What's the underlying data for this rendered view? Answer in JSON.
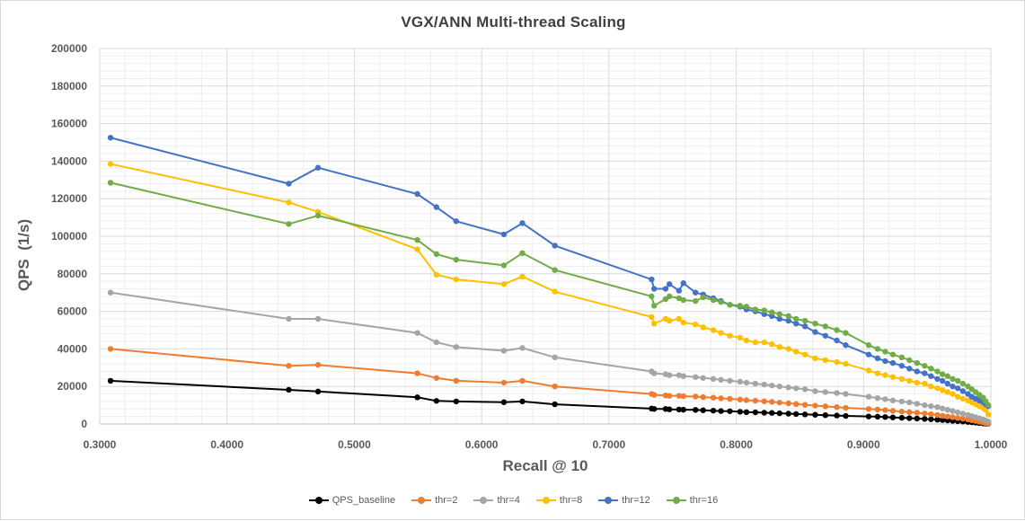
{
  "chart_data": {
    "type": "line",
    "title": "VGX/ANN Multi-thread  Scaling",
    "xlabel": "Recall @ 10",
    "ylabel": "QPS  (1/s)",
    "xlim": [
      0.3,
      1.0
    ],
    "ylim": [
      0,
      200000
    ],
    "x_ticks": [
      "0.3000",
      "0.4000",
      "0.5000",
      "0.6000",
      "0.7000",
      "0.8000",
      "0.9000",
      "1.0000"
    ],
    "y_ticks": [
      "0",
      "20000",
      "40000",
      "60000",
      "80000",
      "100000",
      "120000",
      "140000",
      "160000",
      "180000",
      "200000"
    ],
    "grid": true,
    "legend_position": "bottom",
    "x": [
      0.3085,
      0.4485,
      0.4715,
      0.5495,
      0.5645,
      0.58,
      0.6175,
      0.632,
      0.6575,
      0.7335,
      0.7355,
      0.7445,
      0.7475,
      0.755,
      0.7585,
      0.768,
      0.774,
      0.782,
      0.788,
      0.795,
      0.803,
      0.808,
      0.815,
      0.822,
      0.828,
      0.834,
      0.841,
      0.847,
      0.854,
      0.862,
      0.87,
      0.879,
      0.886,
      0.904,
      0.911,
      0.917,
      0.923,
      0.93,
      0.936,
      0.942,
      0.948,
      0.953,
      0.958,
      0.962,
      0.966,
      0.97,
      0.974,
      0.978,
      0.982,
      0.985,
      0.988,
      0.991,
      0.994,
      0.996,
      0.998
    ],
    "series": [
      {
        "name": "QPS_baseline",
        "color": "#000000",
        "values": [
          23000,
          18200,
          17300,
          14200,
          12300,
          12000,
          11600,
          12000,
          10500,
          8200,
          8000,
          8000,
          7800,
          7700,
          7600,
          7500,
          7300,
          7100,
          6900,
          6800,
          6500,
          6300,
          6200,
          6000,
          5900,
          5700,
          5500,
          5300,
          5100,
          4900,
          4700,
          4500,
          4300,
          4000,
          3900,
          3700,
          3500,
          3300,
          3100,
          2900,
          2700,
          2500,
          2300,
          2100,
          1900,
          1700,
          1500,
          1300,
          1100,
          900,
          700,
          500,
          300,
          200,
          100
        ]
      },
      {
        "name": "thr=2",
        "color": "#ed7d31",
        "values": [
          40000,
          31000,
          31500,
          27000,
          24500,
          23000,
          22000,
          23000,
          20000,
          16000,
          15500,
          15200,
          15000,
          15000,
          14800,
          14600,
          14300,
          14000,
          13700,
          13400,
          13000,
          12700,
          12400,
          12100,
          11800,
          11400,
          11000,
          10600,
          10200,
          9800,
          9400,
          9000,
          8600,
          8000,
          7700,
          7400,
          7000,
          6600,
          6300,
          6000,
          5600,
          5200,
          4800,
          4400,
          4000,
          3600,
          3200,
          2800,
          2400,
          2000,
          1600,
          1200,
          800,
          500,
          200
        ]
      },
      {
        "name": "thr=4",
        "color": "#a5a5a5",
        "values": [
          70000,
          56000,
          56000,
          48500,
          43500,
          41000,
          39000,
          40500,
          35500,
          28000,
          27000,
          26500,
          26000,
          26000,
          25500,
          25000,
          24500,
          24000,
          23500,
          23000,
          22500,
          22000,
          21500,
          21000,
          20500,
          20000,
          19500,
          19000,
          18500,
          17500,
          17000,
          16500,
          16000,
          14500,
          13800,
          13200,
          12500,
          12000,
          11500,
          10800,
          10000,
          9500,
          9000,
          8300,
          7600,
          6900,
          6200,
          5500,
          4800,
          4200,
          3600,
          3000,
          2400,
          1800,
          1200
        ]
      },
      {
        "name": "thr=8",
        "color": "#ffc000",
        "values": [
          138500,
          118000,
          113000,
          93000,
          79500,
          77000,
          74500,
          78500,
          70500,
          57000,
          53500,
          56000,
          55000,
          56000,
          54000,
          53000,
          51500,
          50000,
          48500,
          47000,
          46000,
          44500,
          43500,
          43500,
          42500,
          41000,
          40000,
          38500,
          37000,
          35000,
          34000,
          33000,
          32000,
          28500,
          27000,
          26000,
          25000,
          24000,
          23000,
          22000,
          21500,
          20000,
          19000,
          18000,
          17000,
          16000,
          14500,
          13500,
          12500,
          11500,
          10500,
          9500,
          8500,
          7500,
          5000
        ]
      },
      {
        "name": "thr=12",
        "color": "#4472c4",
        "values": [
          152500,
          128000,
          136500,
          122500,
          115500,
          108000,
          101000,
          107000,
          95000,
          77000,
          72000,
          72000,
          74500,
          71000,
          75000,
          70000,
          69000,
          67000,
          65500,
          63500,
          62500,
          61000,
          60000,
          58500,
          57500,
          56000,
          55000,
          53500,
          52000,
          49000,
          47000,
          44500,
          42000,
          37000,
          35000,
          33500,
          32500,
          31000,
          29500,
          28000,
          27000,
          25500,
          24000,
          23000,
          21500,
          20000,
          19000,
          17500,
          16000,
          14500,
          13500,
          12500,
          11500,
          10500,
          9500
        ]
      },
      {
        "name": "thr=16",
        "color": "#70ad47",
        "values": [
          128500,
          106500,
          111000,
          98000,
          90500,
          87500,
          84500,
          91000,
          82000,
          68000,
          63000,
          66500,
          68000,
          67000,
          66000,
          65500,
          67500,
          66000,
          65000,
          63500,
          63000,
          62500,
          61000,
          60500,
          59500,
          58500,
          57500,
          56000,
          55000,
          53500,
          52000,
          50000,
          48500,
          42000,
          40000,
          38500,
          37000,
          35500,
          34000,
          32500,
          31000,
          29500,
          28000,
          26500,
          25500,
          24000,
          23000,
          21500,
          20000,
          18500,
          17000,
          15500,
          14000,
          12000,
          10000
        ]
      }
    ]
  }
}
